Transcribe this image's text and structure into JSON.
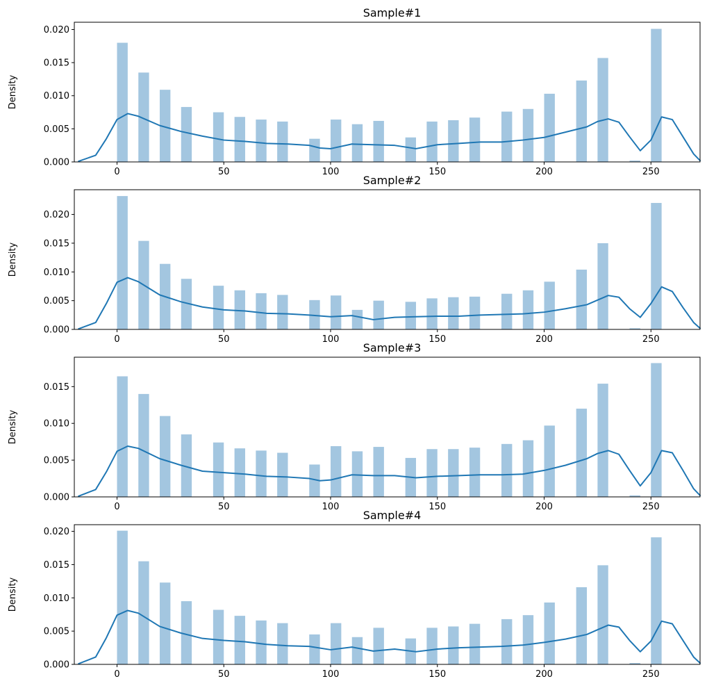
{
  "figure": {
    "width": 1018,
    "height": 990
  },
  "chart_data": [
    {
      "type": "bar",
      "title": "Sample#1",
      "xlabel": "",
      "ylabel": "Density",
      "xlim": [
        -20,
        273
      ],
      "ylim": [
        0,
        0.0211
      ],
      "xticks": [
        0,
        50,
        100,
        150,
        200,
        250
      ],
      "yticks": [
        0.0,
        0.005,
        0.01,
        0.015,
        0.02
      ],
      "ytick_labels": [
        "0.000",
        "0.005",
        "0.010",
        "0.015",
        "0.020"
      ],
      "bin_width": 5,
      "bins": [
        2.5,
        12.5,
        22.5,
        32.5,
        47.5,
        57.5,
        67.5,
        77.5,
        92.5,
        102.5,
        112.5,
        122.5,
        137.5,
        147.5,
        157.5,
        167.5,
        182.5,
        192.5,
        202.5,
        217.5,
        227.5,
        242.5,
        252.5
      ],
      "values": [
        0.018,
        0.0135,
        0.0109,
        0.0083,
        0.0075,
        0.0068,
        0.0064,
        0.0061,
        0.0035,
        0.0064,
        0.0057,
        0.0062,
        0.0037,
        0.0061,
        0.0063,
        0.0067,
        0.0076,
        0.008,
        0.0103,
        0.0123,
        0.0157,
        0.0002,
        0.0201
      ],
      "kde_x": [
        -18,
        -10,
        -5,
        0,
        5,
        10,
        20,
        30,
        40,
        50,
        60,
        70,
        80,
        90,
        95,
        100,
        110,
        120,
        130,
        140,
        150,
        160,
        170,
        180,
        190,
        200,
        210,
        220,
        225,
        230,
        235,
        240,
        245,
        250,
        255,
        260,
        265,
        270,
        273
      ],
      "kde_y": [
        0.0001,
        0.001,
        0.0035,
        0.0064,
        0.0073,
        0.0069,
        0.0055,
        0.0046,
        0.0039,
        0.0033,
        0.0031,
        0.0028,
        0.0027,
        0.0025,
        0.0021,
        0.002,
        0.0027,
        0.0026,
        0.0025,
        0.002,
        0.0026,
        0.0028,
        0.003,
        0.003,
        0.0033,
        0.0037,
        0.0045,
        0.0053,
        0.0061,
        0.0065,
        0.006,
        0.0038,
        0.0017,
        0.0033,
        0.0068,
        0.0064,
        0.0038,
        0.0012,
        0.0002
      ]
    },
    {
      "type": "bar",
      "title": "Sample#2",
      "xlabel": "",
      "ylabel": "Density",
      "xlim": [
        -20,
        273
      ],
      "ylim": [
        0,
        0.0243
      ],
      "xticks": [
        0,
        50,
        100,
        150,
        200,
        250
      ],
      "yticks": [
        0.0,
        0.005,
        0.01,
        0.015,
        0.02
      ],
      "ytick_labels": [
        "0.000",
        "0.005",
        "0.010",
        "0.015",
        "0.020"
      ],
      "bin_width": 5,
      "bins": [
        2.5,
        12.5,
        22.5,
        32.5,
        47.5,
        57.5,
        67.5,
        77.5,
        92.5,
        102.5,
        112.5,
        122.5,
        137.5,
        147.5,
        157.5,
        167.5,
        182.5,
        192.5,
        202.5,
        217.5,
        227.5,
        242.5,
        252.5
      ],
      "values": [
        0.0232,
        0.0154,
        0.0114,
        0.0088,
        0.0076,
        0.0068,
        0.0063,
        0.006,
        0.0051,
        0.0059,
        0.0034,
        0.005,
        0.0048,
        0.0054,
        0.0056,
        0.0057,
        0.0062,
        0.0068,
        0.0083,
        0.0104,
        0.015,
        0.0002,
        0.022
      ],
      "kde_x": [
        -18,
        -10,
        -5,
        0,
        5,
        10,
        20,
        30,
        40,
        50,
        60,
        70,
        80,
        90,
        100,
        110,
        120,
        130,
        140,
        150,
        160,
        170,
        180,
        190,
        200,
        210,
        220,
        225,
        230,
        235,
        240,
        245,
        250,
        255,
        260,
        265,
        270,
        273
      ],
      "kde_y": [
        0.0001,
        0.0012,
        0.0045,
        0.0082,
        0.009,
        0.0083,
        0.006,
        0.0048,
        0.0039,
        0.0034,
        0.0032,
        0.0028,
        0.0027,
        0.0025,
        0.0022,
        0.0024,
        0.0017,
        0.0021,
        0.0022,
        0.0023,
        0.0023,
        0.0025,
        0.0026,
        0.0027,
        0.003,
        0.0036,
        0.0043,
        0.0051,
        0.0059,
        0.0056,
        0.0036,
        0.0021,
        0.0045,
        0.0074,
        0.0066,
        0.0038,
        0.0012,
        0.0002
      ]
    },
    {
      "type": "bar",
      "title": "Sample#3",
      "xlabel": "",
      "ylabel": "Density",
      "xlim": [
        -20,
        273
      ],
      "ylim": [
        0,
        0.019
      ],
      "xticks": [
        0,
        50,
        100,
        150,
        200,
        250
      ],
      "yticks": [
        0.0,
        0.005,
        0.01,
        0.015
      ],
      "ytick_labels": [
        "0.000",
        "0.005",
        "0.010",
        "0.015"
      ],
      "bin_width": 5,
      "bins": [
        2.5,
        12.5,
        22.5,
        32.5,
        47.5,
        57.5,
        67.5,
        77.5,
        92.5,
        102.5,
        112.5,
        122.5,
        137.5,
        147.5,
        157.5,
        167.5,
        182.5,
        192.5,
        202.5,
        217.5,
        227.5,
        242.5,
        252.5
      ],
      "values": [
        0.0164,
        0.014,
        0.011,
        0.0085,
        0.0074,
        0.0066,
        0.0063,
        0.006,
        0.0044,
        0.0069,
        0.0062,
        0.0068,
        0.0053,
        0.0065,
        0.0065,
        0.0067,
        0.0072,
        0.0077,
        0.0097,
        0.012,
        0.0154,
        0.0002,
        0.0182
      ],
      "kde_x": [
        -18,
        -10,
        -5,
        0,
        5,
        10,
        20,
        30,
        40,
        50,
        60,
        70,
        80,
        90,
        95,
        100,
        110,
        120,
        130,
        140,
        150,
        160,
        170,
        180,
        190,
        200,
        210,
        220,
        225,
        230,
        235,
        240,
        245,
        250,
        255,
        260,
        265,
        270,
        273
      ],
      "kde_y": [
        0.0001,
        0.001,
        0.0034,
        0.0062,
        0.0069,
        0.0066,
        0.0052,
        0.0043,
        0.0035,
        0.0033,
        0.0031,
        0.0028,
        0.0027,
        0.0025,
        0.0022,
        0.0023,
        0.003,
        0.0029,
        0.0029,
        0.0026,
        0.0028,
        0.0029,
        0.003,
        0.003,
        0.0031,
        0.0036,
        0.0043,
        0.0052,
        0.0059,
        0.0063,
        0.0058,
        0.0036,
        0.0015,
        0.0033,
        0.0063,
        0.006,
        0.0036,
        0.0011,
        0.0002
      ]
    },
    {
      "type": "bar",
      "title": "Sample#4",
      "xlabel": "",
      "ylabel": "Density",
      "xlim": [
        -20,
        273
      ],
      "ylim": [
        0,
        0.021
      ],
      "xticks": [
        0,
        50,
        100,
        150,
        200,
        250
      ],
      "yticks": [
        0.0,
        0.005,
        0.01,
        0.015,
        0.02
      ],
      "ytick_labels": [
        "0.000",
        "0.005",
        "0.010",
        "0.015",
        "0.020"
      ],
      "bin_width": 5,
      "bins": [
        2.5,
        12.5,
        22.5,
        32.5,
        47.5,
        57.5,
        67.5,
        77.5,
        92.5,
        102.5,
        112.5,
        122.5,
        137.5,
        147.5,
        157.5,
        167.5,
        182.5,
        192.5,
        202.5,
        217.5,
        227.5,
        242.5,
        252.5
      ],
      "values": [
        0.0201,
        0.0155,
        0.0123,
        0.0095,
        0.0082,
        0.0073,
        0.0066,
        0.0062,
        0.0045,
        0.0062,
        0.0041,
        0.0055,
        0.0039,
        0.0055,
        0.0057,
        0.0061,
        0.0068,
        0.0074,
        0.0093,
        0.0116,
        0.0149,
        0.0002,
        0.0191
      ],
      "kde_x": [
        -18,
        -10,
        -5,
        0,
        5,
        10,
        20,
        30,
        40,
        50,
        60,
        70,
        80,
        90,
        100,
        110,
        120,
        130,
        140,
        150,
        160,
        170,
        180,
        190,
        200,
        210,
        220,
        225,
        230,
        235,
        240,
        245,
        250,
        255,
        260,
        265,
        270,
        273
      ],
      "kde_y": [
        0.0001,
        0.0011,
        0.004,
        0.0074,
        0.0081,
        0.0077,
        0.0057,
        0.0047,
        0.0039,
        0.0036,
        0.0034,
        0.003,
        0.0028,
        0.0027,
        0.0022,
        0.0026,
        0.002,
        0.0023,
        0.0019,
        0.0023,
        0.0025,
        0.0026,
        0.0027,
        0.0029,
        0.0033,
        0.0038,
        0.0045,
        0.0052,
        0.0059,
        0.0056,
        0.0036,
        0.0019,
        0.0035,
        0.0065,
        0.0061,
        0.0036,
        0.0011,
        0.0002
      ]
    }
  ]
}
